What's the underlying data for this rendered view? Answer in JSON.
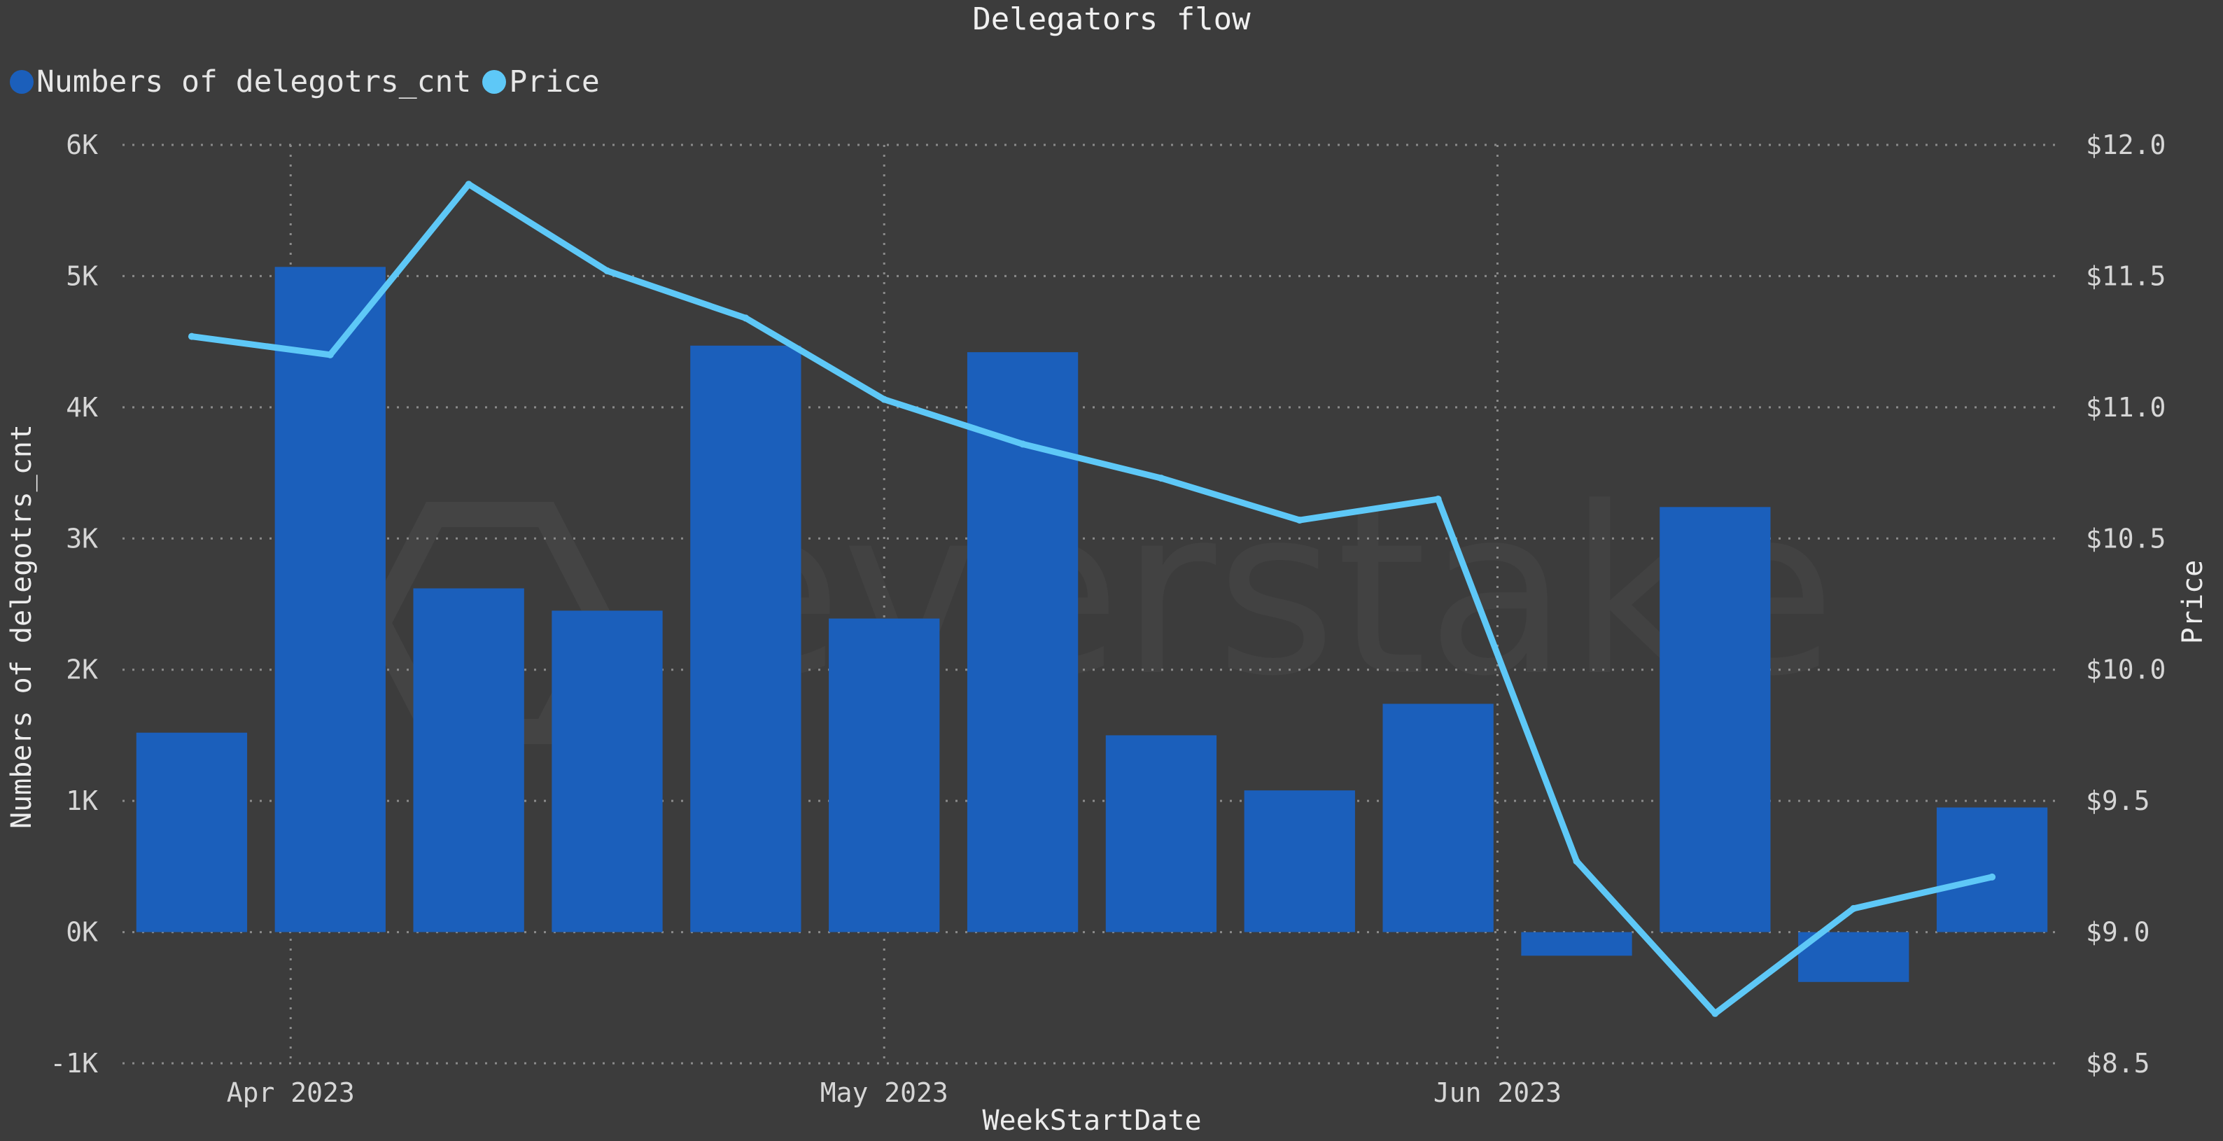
{
  "chart_data": {
    "type": "bar",
    "title": "Delegators flow",
    "xlabel": "WeekStartDate",
    "ylabel_left": "Numbers of delegotrs_cnt",
    "ylabel_right": "Price",
    "legend_placement": "top-left",
    "grid": true,
    "watermark": "everstake",
    "ylim_left": [
      -1000,
      6000
    ],
    "ylim_right": [
      8.5,
      12.0
    ],
    "y_ticks_left": [
      {
        "value": -1000,
        "label": "-1K"
      },
      {
        "value": 0,
        "label": "0K"
      },
      {
        "value": 1000,
        "label": "1K"
      },
      {
        "value": 2000,
        "label": "2K"
      },
      {
        "value": 3000,
        "label": "3K"
      },
      {
        "value": 4000,
        "label": "4K"
      },
      {
        "value": 5000,
        "label": "5K"
      },
      {
        "value": 6000,
        "label": "6K"
      }
    ],
    "y_ticks_right": [
      {
        "value": 8.5,
        "label": "$8.5"
      },
      {
        "value": 9.0,
        "label": "$9.0"
      },
      {
        "value": 9.5,
        "label": "$9.5"
      },
      {
        "value": 10.0,
        "label": "$10.0"
      },
      {
        "value": 10.5,
        "label": "$10.5"
      },
      {
        "value": 11.0,
        "label": "$11.0"
      },
      {
        "value": 11.5,
        "label": "$11.5"
      },
      {
        "value": 12.0,
        "label": "$12.0"
      }
    ],
    "x": [
      "2023-03-27",
      "2023-04-03",
      "2023-04-10",
      "2023-04-17",
      "2023-04-24",
      "2023-05-01",
      "2023-05-08",
      "2023-05-15",
      "2023-05-22",
      "2023-05-29",
      "2023-06-05",
      "2023-06-12",
      "2023-06-19",
      "2023-06-26"
    ],
    "x_ticks": [
      {
        "value": "2023-04-01",
        "label": "Apr 2023"
      },
      {
        "value": "2023-05-01",
        "label": "May 2023"
      },
      {
        "value": "2023-06-01",
        "label": "Jun 2023"
      }
    ],
    "series": [
      {
        "name": "Numbers of delegotrs_cnt",
        "type": "bar",
        "axis": "left",
        "color": "#1b5fbb",
        "values": [
          1520,
          5070,
          2620,
          2450,
          4470,
          2390,
          4420,
          1500,
          1080,
          1740,
          -180,
          3240,
          -380,
          950
        ]
      },
      {
        "name": "Price",
        "type": "line",
        "axis": "right",
        "color": "#5ec8f7",
        "values": [
          11.27,
          11.2,
          11.85,
          11.52,
          11.34,
          11.03,
          10.86,
          10.73,
          10.57,
          10.65,
          9.27,
          8.69,
          9.09,
          9.21
        ]
      }
    ]
  }
}
